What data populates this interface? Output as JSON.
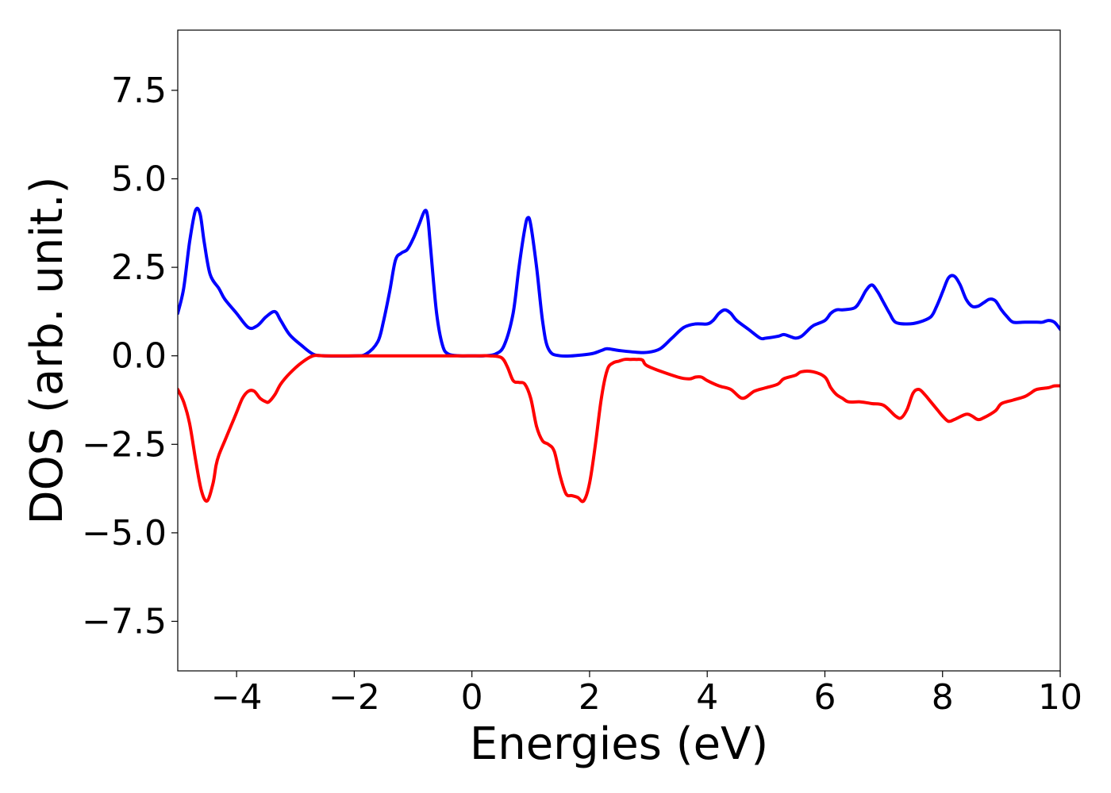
{
  "chart_data": {
    "type": "line",
    "title": "",
    "xlabel": "Energies (eV)",
    "ylabel": "DOS (arb. unit.)",
    "xlim": [
      -5,
      10
    ],
    "ylim": [
      -8.9,
      9.2
    ],
    "grid": false,
    "legend": "none",
    "x_ticks": [
      {
        "value": -4,
        "label": "−4"
      },
      {
        "value": -2,
        "label": "−2"
      },
      {
        "value": 0,
        "label": "0"
      },
      {
        "value": 2,
        "label": "2"
      },
      {
        "value": 4,
        "label": "4"
      },
      {
        "value": 6,
        "label": "6"
      },
      {
        "value": 8,
        "label": "8"
      },
      {
        "value": 10,
        "label": "10"
      }
    ],
    "y_ticks": [
      {
        "value": -7.5,
        "label": "−7.5"
      },
      {
        "value": -5.0,
        "label": "−5.0"
      },
      {
        "value": -2.5,
        "label": "−2.5"
      },
      {
        "value": 0.0,
        "label": "0.0"
      },
      {
        "value": 2.5,
        "label": "2.5"
      },
      {
        "value": 5.0,
        "label": "5.0"
      },
      {
        "value": 7.5,
        "label": "7.5"
      }
    ],
    "series": [
      {
        "color": "#0000ff",
        "x": [
          -5.0,
          -4.9,
          -4.8,
          -4.7,
          -4.62,
          -4.55,
          -4.45,
          -4.3,
          -4.2,
          -4.0,
          -3.8,
          -3.65,
          -3.5,
          -3.35,
          -3.25,
          -3.1,
          -2.9,
          -2.7,
          -2.5,
          -2.0,
          -1.8,
          -1.6,
          -1.5,
          -1.4,
          -1.3,
          -1.2,
          -1.1,
          -1.0,
          -0.9,
          -0.8,
          -0.75,
          -0.7,
          -0.6,
          -0.5,
          -0.4,
          -0.2,
          0.0,
          0.2,
          0.4,
          0.55,
          0.7,
          0.8,
          0.9,
          0.95,
          1.0,
          1.1,
          1.2,
          1.3,
          1.5,
          2.0,
          2.2,
          2.3,
          2.5,
          2.8,
          3.0,
          3.2,
          3.4,
          3.6,
          3.8,
          4.0,
          4.1,
          4.2,
          4.3,
          4.4,
          4.5,
          4.7,
          4.9,
          5.0,
          5.2,
          5.3,
          5.4,
          5.5,
          5.6,
          5.7,
          5.8,
          6.0,
          6.1,
          6.2,
          6.3,
          6.5,
          6.6,
          6.7,
          6.8,
          6.9,
          7.0,
          7.1,
          7.2,
          7.4,
          7.6,
          7.8,
          7.9,
          8.0,
          8.1,
          8.2,
          8.3,
          8.4,
          8.5,
          8.6,
          8.7,
          8.8,
          8.9,
          9.0,
          9.1,
          9.2,
          9.4,
          9.6,
          9.7,
          9.8,
          9.9,
          10.0
        ],
        "y": [
          1.2,
          1.9,
          3.2,
          4.1,
          4.0,
          3.2,
          2.3,
          1.9,
          1.6,
          1.2,
          0.8,
          0.85,
          1.1,
          1.25,
          1.0,
          0.6,
          0.3,
          0.05,
          0.0,
          0.0,
          0.05,
          0.4,
          1.0,
          1.8,
          2.7,
          2.9,
          3.0,
          3.3,
          3.7,
          4.1,
          3.9,
          3.0,
          1.2,
          0.3,
          0.05,
          0.0,
          0.0,
          0.0,
          0.05,
          0.3,
          1.2,
          2.5,
          3.6,
          3.9,
          3.7,
          2.5,
          1.0,
          0.2,
          0.0,
          0.05,
          0.15,
          0.2,
          0.15,
          0.1,
          0.1,
          0.2,
          0.5,
          0.8,
          0.9,
          0.9,
          1.0,
          1.2,
          1.3,
          1.2,
          1.0,
          0.75,
          0.5,
          0.5,
          0.55,
          0.6,
          0.55,
          0.5,
          0.55,
          0.7,
          0.85,
          1.0,
          1.2,
          1.3,
          1.3,
          1.35,
          1.55,
          1.85,
          2.0,
          1.8,
          1.5,
          1.2,
          0.95,
          0.9,
          0.95,
          1.1,
          1.4,
          1.8,
          2.2,
          2.25,
          2.0,
          1.6,
          1.4,
          1.4,
          1.5,
          1.6,
          1.55,
          1.3,
          1.1,
          0.95,
          0.95,
          0.95,
          0.95,
          1.0,
          0.95,
          0.75
        ]
      },
      {
        "color": "#ff0000",
        "x": [
          -5.0,
          -4.9,
          -4.8,
          -4.7,
          -4.6,
          -4.5,
          -4.4,
          -4.35,
          -4.3,
          -4.2,
          -4.1,
          -4.0,
          -3.9,
          -3.8,
          -3.7,
          -3.6,
          -3.5,
          -3.45,
          -3.35,
          -3.25,
          -3.1,
          -2.9,
          -2.7,
          -2.5,
          -2.0,
          -1.0,
          0.0,
          0.3,
          0.5,
          0.6,
          0.7,
          0.8,
          0.9,
          1.0,
          1.1,
          1.2,
          1.3,
          1.4,
          1.5,
          1.6,
          1.7,
          1.8,
          1.9,
          2.0,
          2.1,
          2.2,
          2.3,
          2.4,
          2.5,
          2.6,
          2.7,
          2.8,
          2.9,
          3.0,
          3.5,
          3.7,
          3.8,
          3.9,
          4.0,
          4.2,
          4.4,
          4.6,
          4.8,
          5.0,
          5.2,
          5.3,
          5.5,
          5.6,
          5.8,
          6.0,
          6.1,
          6.2,
          6.3,
          6.4,
          6.6,
          6.8,
          7.0,
          7.2,
          7.3,
          7.4,
          7.5,
          7.6,
          7.7,
          7.8,
          7.9,
          8.0,
          8.1,
          8.2,
          8.4,
          8.5,
          8.6,
          8.7,
          8.9,
          9.0,
          9.2,
          9.4,
          9.5,
          9.6,
          9.8,
          9.9,
          10.0
        ],
        "y": [
          -0.95,
          -1.3,
          -1.9,
          -2.9,
          -3.8,
          -4.1,
          -3.6,
          -3.1,
          -2.8,
          -2.4,
          -2.0,
          -1.6,
          -1.2,
          -1.0,
          -1.0,
          -1.2,
          -1.3,
          -1.3,
          -1.1,
          -0.8,
          -0.5,
          -0.2,
          0.0,
          0.0,
          0.0,
          0.0,
          0.0,
          0.0,
          -0.05,
          -0.3,
          -0.7,
          -0.75,
          -0.8,
          -1.2,
          -2.0,
          -2.4,
          -2.5,
          -2.7,
          -3.4,
          -3.9,
          -3.95,
          -4.0,
          -4.1,
          -3.6,
          -2.5,
          -1.2,
          -0.4,
          -0.2,
          -0.15,
          -0.1,
          -0.1,
          -0.1,
          -0.12,
          -0.3,
          -0.6,
          -0.65,
          -0.6,
          -0.6,
          -0.7,
          -0.85,
          -0.95,
          -1.2,
          -1.0,
          -0.9,
          -0.8,
          -0.65,
          -0.55,
          -0.45,
          -0.45,
          -0.6,
          -0.9,
          -1.1,
          -1.2,
          -1.3,
          -1.3,
          -1.35,
          -1.4,
          -1.7,
          -1.75,
          -1.5,
          -1.05,
          -0.95,
          -1.1,
          -1.3,
          -1.5,
          -1.7,
          -1.85,
          -1.8,
          -1.65,
          -1.7,
          -1.8,
          -1.75,
          -1.55,
          -1.35,
          -1.25,
          -1.15,
          -1.05,
          -0.95,
          -0.9,
          -0.85,
          -0.85
        ]
      }
    ]
  }
}
